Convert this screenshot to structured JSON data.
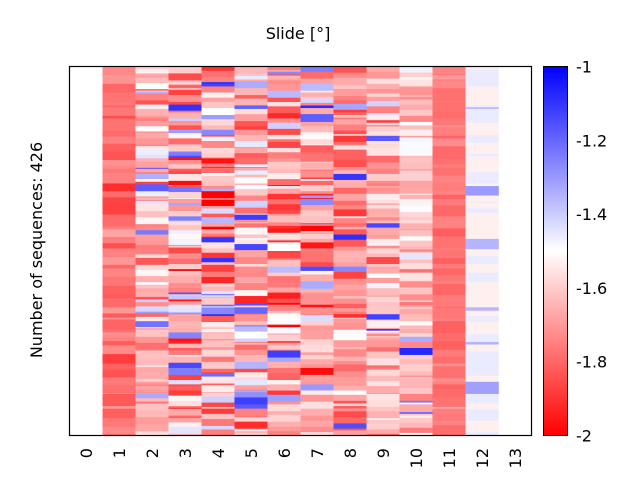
{
  "chart_data": {
    "type": "heatmap",
    "title": "Slide [°]",
    "xlabel": "",
    "ylabel": "Number of sequences: 426",
    "n_rows": 426,
    "x_categories": [
      "0",
      "1",
      "2",
      "3",
      "4",
      "5",
      "6",
      "7",
      "8",
      "9",
      "10",
      "11",
      "12",
      "13"
    ],
    "colorbar": {
      "min": -2,
      "max": -1,
      "ticks": [
        "-1",
        "-1.2",
        "-1.4",
        "-1.6",
        "-1.8",
        "-2"
      ],
      "tick_values": [
        -1,
        -1.2,
        -1.4,
        -1.6,
        -1.8,
        -2
      ],
      "colormap": "bwr",
      "low_color": "#ff0000",
      "mid_color": "#ffffff",
      "high_color": "#0000ff"
    },
    "columns": [
      {
        "x": "0",
        "has_data": false
      },
      {
        "x": "1",
        "has_data": true,
        "mean": -1.78,
        "spread": 0.05,
        "blue_fraction": 0.0
      },
      {
        "x": "2",
        "has_data": true,
        "mean": -1.66,
        "spread": 0.1,
        "blue_fraction": 0.08
      },
      {
        "x": "3",
        "has_data": true,
        "mean": -1.68,
        "spread": 0.14,
        "blue_fraction": 0.12
      },
      {
        "x": "4",
        "has_data": true,
        "mean": -1.69,
        "spread": 0.14,
        "blue_fraction": 0.1
      },
      {
        "x": "5",
        "has_data": true,
        "mean": -1.66,
        "spread": 0.14,
        "blue_fraction": 0.14
      },
      {
        "x": "6",
        "has_data": true,
        "mean": -1.7,
        "spread": 0.14,
        "blue_fraction": 0.08
      },
      {
        "x": "7",
        "has_data": true,
        "mean": -1.7,
        "spread": 0.14,
        "blue_fraction": 0.08
      },
      {
        "x": "8",
        "has_data": true,
        "mean": -1.72,
        "spread": 0.12,
        "blue_fraction": 0.06
      },
      {
        "x": "9",
        "has_data": true,
        "mean": -1.64,
        "spread": 0.08,
        "blue_fraction": 0.08
      },
      {
        "x": "10",
        "has_data": true,
        "mean": -1.62,
        "spread": 0.08,
        "blue_fraction": 0.06
      },
      {
        "x": "11",
        "has_data": true,
        "mean": -1.77,
        "spread": 0.03,
        "blue_fraction": 0.0
      },
      {
        "x": "12",
        "has_data": true,
        "mean": -1.46,
        "spread": 0.04,
        "blue_fraction": 0.12
      },
      {
        "x": "13",
        "has_data": false
      }
    ]
  }
}
